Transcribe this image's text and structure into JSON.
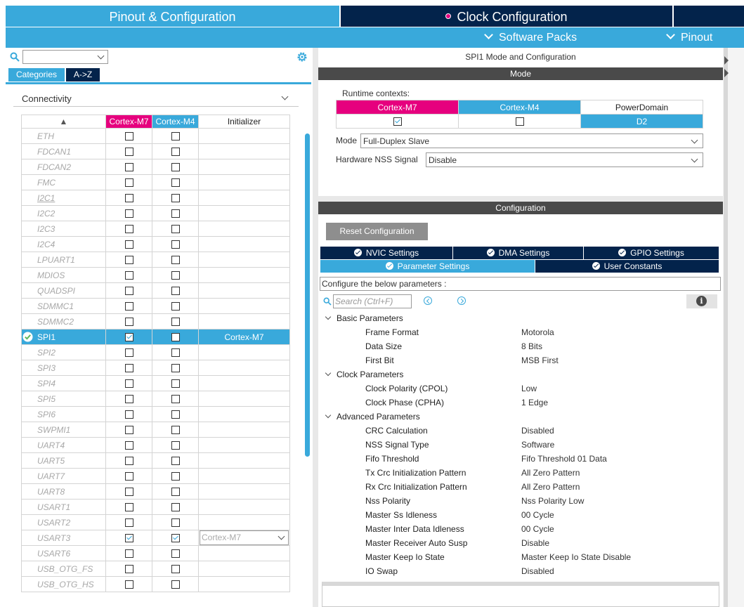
{
  "header": {
    "tab_pinout": "Pinout & Configuration",
    "tab_clock": "Clock Configuration",
    "software_packs": "Software Packs",
    "pinout": "Pinout"
  },
  "left": {
    "category_select_value": "",
    "btn_categories": "Categories",
    "btn_az": "A->Z",
    "group": "Connectivity",
    "columns": {
      "sort": "▲",
      "m7": "Cortex-M7",
      "m4": "Cortex-M4",
      "init": "Initializer"
    },
    "rows": [
      {
        "name": "ETH",
        "m7": false,
        "m4": false,
        "init": ""
      },
      {
        "name": "FDCAN1",
        "m7": false,
        "m4": false,
        "init": ""
      },
      {
        "name": "FDCAN2",
        "m7": false,
        "m4": false,
        "init": ""
      },
      {
        "name": "FMC",
        "m7": false,
        "m4": false,
        "init": ""
      },
      {
        "name": "I2C1",
        "m7": false,
        "m4": false,
        "init": ""
      },
      {
        "name": "I2C2",
        "m7": false,
        "m4": false,
        "init": ""
      },
      {
        "name": "I2C3",
        "m7": false,
        "m4": false,
        "init": ""
      },
      {
        "name": "I2C4",
        "m7": false,
        "m4": false,
        "init": ""
      },
      {
        "name": "LPUART1",
        "m7": false,
        "m4": false,
        "init": ""
      },
      {
        "name": "MDIOS",
        "m7": false,
        "m4": false,
        "init": ""
      },
      {
        "name": "QUADSPI",
        "m7": false,
        "m4": false,
        "init": ""
      },
      {
        "name": "SDMMC1",
        "m7": false,
        "m4": false,
        "init": ""
      },
      {
        "name": "SDMMC2",
        "m7": false,
        "m4": false,
        "init": ""
      },
      {
        "name": "SPI1",
        "m7": true,
        "m4": false,
        "init": "Cortex-M7"
      },
      {
        "name": "SPI2",
        "m7": false,
        "m4": false,
        "init": ""
      },
      {
        "name": "SPI3",
        "m7": false,
        "m4": false,
        "init": ""
      },
      {
        "name": "SPI4",
        "m7": false,
        "m4": false,
        "init": ""
      },
      {
        "name": "SPI5",
        "m7": false,
        "m4": false,
        "init": ""
      },
      {
        "name": "SPI6",
        "m7": false,
        "m4": false,
        "init": ""
      },
      {
        "name": "SWPMI1",
        "m7": false,
        "m4": false,
        "init": ""
      },
      {
        "name": "UART4",
        "m7": false,
        "m4": false,
        "init": ""
      },
      {
        "name": "UART5",
        "m7": false,
        "m4": false,
        "init": ""
      },
      {
        "name": "UART7",
        "m7": false,
        "m4": false,
        "init": ""
      },
      {
        "name": "UART8",
        "m7": false,
        "m4": false,
        "init": ""
      },
      {
        "name": "USART1",
        "m7": false,
        "m4": false,
        "init": ""
      },
      {
        "name": "USART2",
        "m7": false,
        "m4": false,
        "init": ""
      },
      {
        "name": "USART3",
        "m7": true,
        "m4": true,
        "init": "Cortex-M7"
      },
      {
        "name": "USART6",
        "m7": false,
        "m4": false,
        "init": ""
      },
      {
        "name": "USB_OTG_FS",
        "m7": false,
        "m4": false,
        "init": ""
      },
      {
        "name": "USB_OTG_HS",
        "m7": false,
        "m4": false,
        "init": ""
      }
    ]
  },
  "right": {
    "title": "SPI1 Mode and Configuration",
    "mode_header": "Mode",
    "runtime_label": "Runtime contexts:",
    "runtime": {
      "m7": "Cortex-M7",
      "m4": "Cortex-M4",
      "pd": "PowerDomain",
      "m7_checked": true,
      "m4_checked": false,
      "pd_value": "D2"
    },
    "mode_label": "Mode",
    "mode_value": "Full-Duplex Slave",
    "nss_label": "Hardware NSS Signal",
    "nss_value": "Disable",
    "config_header": "Configuration",
    "reset_button": "Reset Configuration",
    "tabs_row1": [
      "NVIC Settings",
      "DMA Settings",
      "GPIO Settings"
    ],
    "tabs_row2": [
      "Parameter Settings",
      "User Constants"
    ],
    "configure_text": "Configure the below parameters :",
    "search_placeholder": "Search (Ctrl+F)",
    "info": "i",
    "groups": [
      {
        "name": "Basic Parameters",
        "params": [
          {
            "name": "Frame Format",
            "value": "Motorola"
          },
          {
            "name": "Data Size",
            "value": "8 Bits"
          },
          {
            "name": "First Bit",
            "value": "MSB First"
          }
        ]
      },
      {
        "name": "Clock Parameters",
        "params": [
          {
            "name": "Clock Polarity (CPOL)",
            "value": "Low"
          },
          {
            "name": "Clock Phase (CPHA)",
            "value": "1 Edge"
          }
        ]
      },
      {
        "name": "Advanced Parameters",
        "params": [
          {
            "name": "CRC Calculation",
            "value": "Disabled"
          },
          {
            "name": "NSS Signal Type",
            "value": "Software"
          },
          {
            "name": "Fifo Threshold",
            "value": "Fifo Threshold 01 Data"
          },
          {
            "name": "Tx Crc Initialization Pattern",
            "value": "All Zero Pattern"
          },
          {
            "name": "Rx Crc Initialization Pattern",
            "value": "All Zero Pattern"
          },
          {
            "name": "Nss Polarity",
            "value": "Nss Polarity Low"
          },
          {
            "name": "Master Ss Idleness",
            "value": "00 Cycle"
          },
          {
            "name": "Master Inter Data Idleness",
            "value": "00 Cycle"
          },
          {
            "name": "Master Receiver Auto Susp",
            "value": "Disable"
          },
          {
            "name": "Master Keep Io State",
            "value": "Master Keep Io State Disable"
          },
          {
            "name": "IO Swap",
            "value": "Disabled"
          }
        ]
      }
    ]
  },
  "colors": {
    "accent_blue": "#39a9db",
    "navy": "#03234b",
    "magenta": "#e6007e",
    "dark_header": "#4a4a4a"
  }
}
